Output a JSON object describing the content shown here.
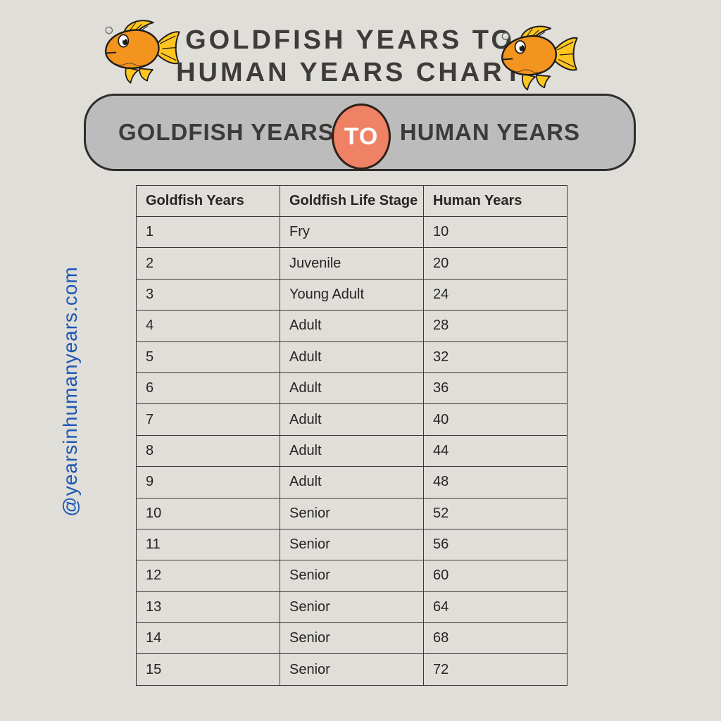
{
  "page": {
    "background_color": "#e0ded9"
  },
  "header": {
    "title_line1": "GOLDFISH YEARS TO",
    "title_line2": "HUMAN YEARS CHART",
    "title_color": "#3d3c3a"
  },
  "icons": {
    "left_fish": "goldfish-icon",
    "right_fish": "goldfish-icon",
    "fish_body_color": "#f3941f",
    "fish_fin_color": "#ffc51f"
  },
  "banner": {
    "left_label": "GOLDFISH YEARS",
    "center_label": "TO",
    "right_label": "HUMAN YEARS",
    "bg_color": "#bcbcbc",
    "circle_color": "#ef8165",
    "circle_text_color": "#ffffff"
  },
  "watermark": {
    "handle": "@yearsinhumanyears.com",
    "color": "#1d57b3"
  },
  "chart_data": {
    "type": "table",
    "title": "Goldfish Years to Human Years Chart",
    "columns": [
      "Goldfish Years",
      "Goldfish Life Stage",
      "Human Years"
    ],
    "rows": [
      [
        "1",
        "Fry",
        "10"
      ],
      [
        "2",
        "Juvenile",
        "20"
      ],
      [
        "3",
        "Young Adult",
        "24"
      ],
      [
        "4",
        "Adult",
        "28"
      ],
      [
        "5",
        "Adult",
        "32"
      ],
      [
        "6",
        "Adult",
        "36"
      ],
      [
        "7",
        "Adult",
        "40"
      ],
      [
        "8",
        "Adult",
        "44"
      ],
      [
        "9",
        "Adult",
        "48"
      ],
      [
        "10",
        "Senior",
        "52"
      ],
      [
        "11",
        "Senior",
        "56"
      ],
      [
        "12",
        "Senior",
        "60"
      ],
      [
        "13",
        "Senior",
        "64"
      ],
      [
        "14",
        "Senior",
        "68"
      ],
      [
        "15",
        "Senior",
        "72"
      ]
    ]
  }
}
